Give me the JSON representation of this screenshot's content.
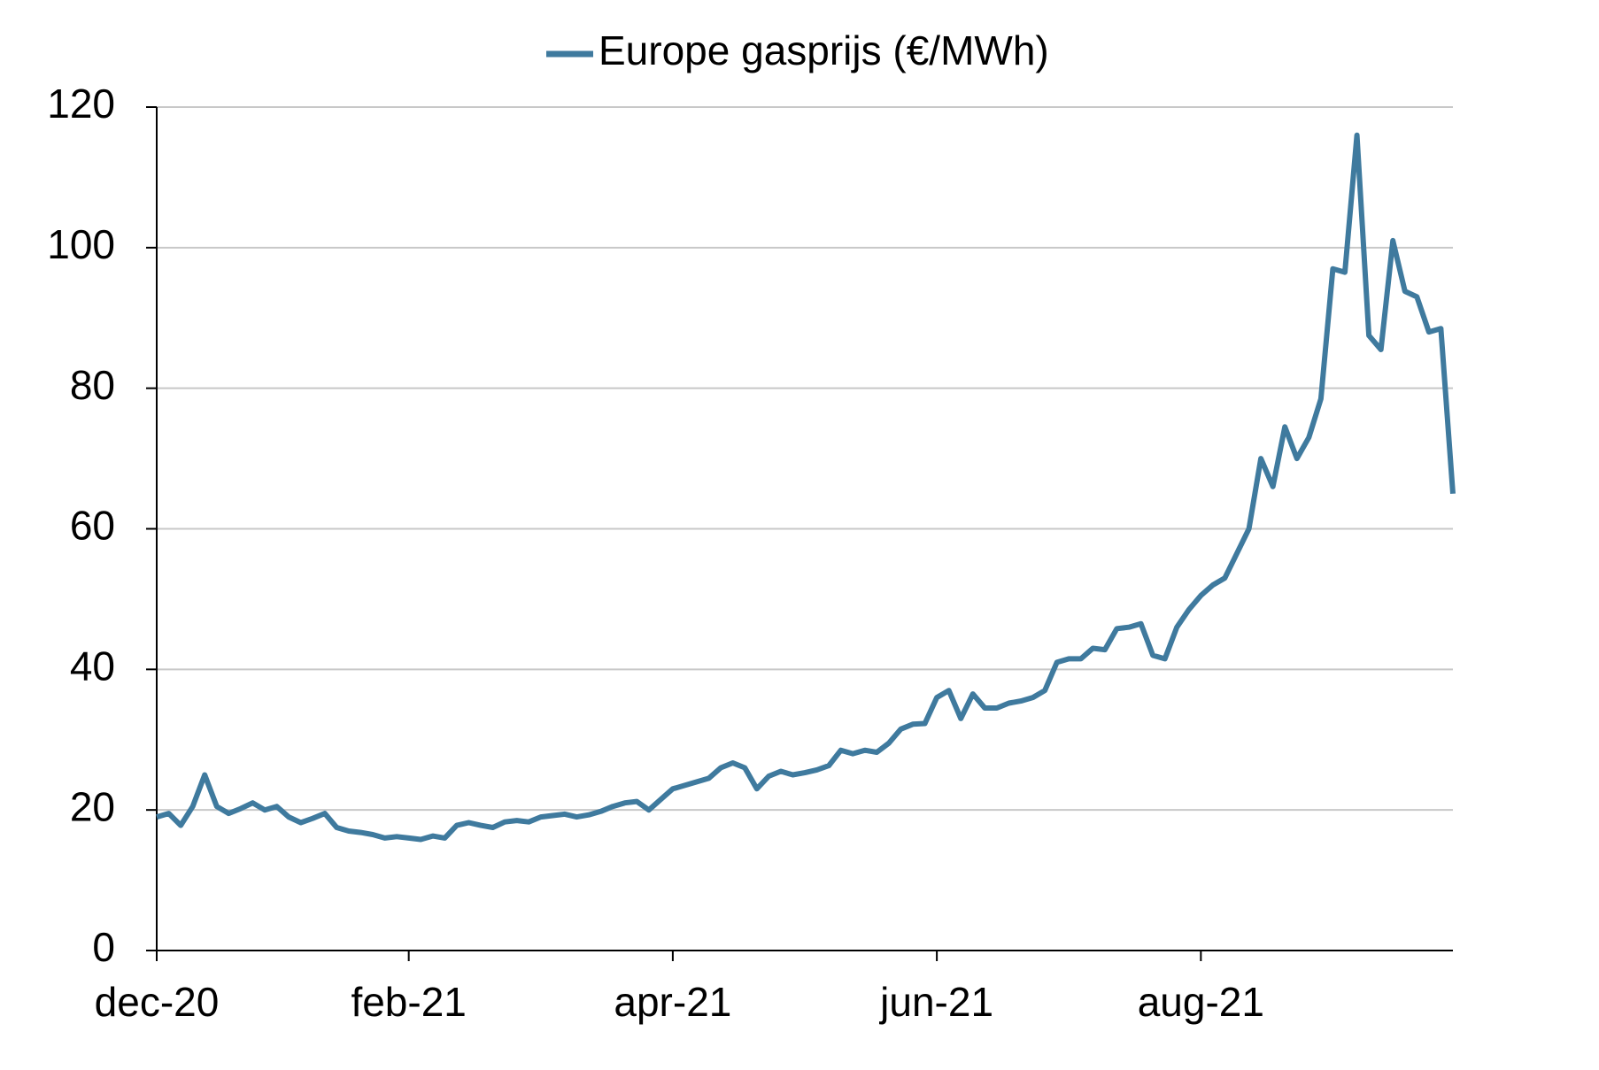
{
  "chart_data": {
    "type": "line",
    "categories": [
      "dec-20",
      null,
      null,
      null,
      null,
      null,
      null,
      null,
      null,
      null,
      null,
      null,
      null,
      null,
      null,
      null,
      null,
      null,
      null,
      null,
      null,
      "feb-21",
      null,
      null,
      null,
      null,
      null,
      null,
      null,
      null,
      null,
      null,
      null,
      null,
      null,
      null,
      null,
      null,
      null,
      null,
      null,
      null,
      null,
      "apr-21",
      null,
      null,
      null,
      null,
      null,
      null,
      null,
      null,
      null,
      null,
      null,
      null,
      null,
      null,
      null,
      null,
      null,
      null,
      null,
      null,
      null,
      "jun-21",
      null,
      null,
      null,
      null,
      null,
      null,
      null,
      null,
      null,
      null,
      null,
      null,
      null,
      null,
      null,
      null,
      null,
      null,
      null,
      null,
      null,
      "aug-21",
      null,
      null,
      null,
      null,
      null,
      null,
      null,
      null,
      null,
      null,
      null,
      null,
      null,
      null,
      null,
      null,
      null,
      null,
      null,
      null,
      null
    ],
    "series": [
      {
        "name": "Europe gasprijs (€/MWh)",
        "color": "#3f7a9e",
        "values": [
          19,
          19.5,
          17.8,
          20.5,
          25,
          20.5,
          19.5,
          20.2,
          21,
          20,
          20.5,
          19,
          18.2,
          18.8,
          19.5,
          17.5,
          17,
          16.8,
          16.5,
          16,
          16.2,
          16,
          15.8,
          16.3,
          16,
          17.8,
          18.2,
          17.8,
          17.5,
          18.3,
          18.5,
          18.3,
          19,
          19.2,
          19.4,
          19,
          19.3,
          19.8,
          20.5,
          21,
          21.2,
          20,
          21.5,
          23,
          23.5,
          24,
          24.5,
          26,
          26.7,
          26,
          23,
          24.8,
          25.5,
          25,
          25.3,
          25.7,
          26.3,
          28.5,
          28,
          28.5,
          28.2,
          29.5,
          31.5,
          32.2,
          32.3,
          36,
          37,
          33,
          36.5,
          34.5,
          34.5,
          35.2,
          35.5,
          36,
          37,
          41,
          41.5,
          41.5,
          43,
          42.8,
          45.8,
          46,
          46.5,
          42,
          41.5,
          46,
          48.5,
          50.5,
          52,
          53,
          56.5,
          60,
          70,
          66,
          74.5,
          70,
          73,
          78.5,
          97,
          96.5,
          116,
          87.5,
          85.5,
          101,
          93.8,
          93,
          88,
          88.5,
          65
        ]
      }
    ],
    "ylim": [
      0,
      120
    ],
    "yticks": [
      0,
      20,
      40,
      60,
      80,
      100,
      120
    ],
    "grid": true,
    "legend": "top"
  }
}
